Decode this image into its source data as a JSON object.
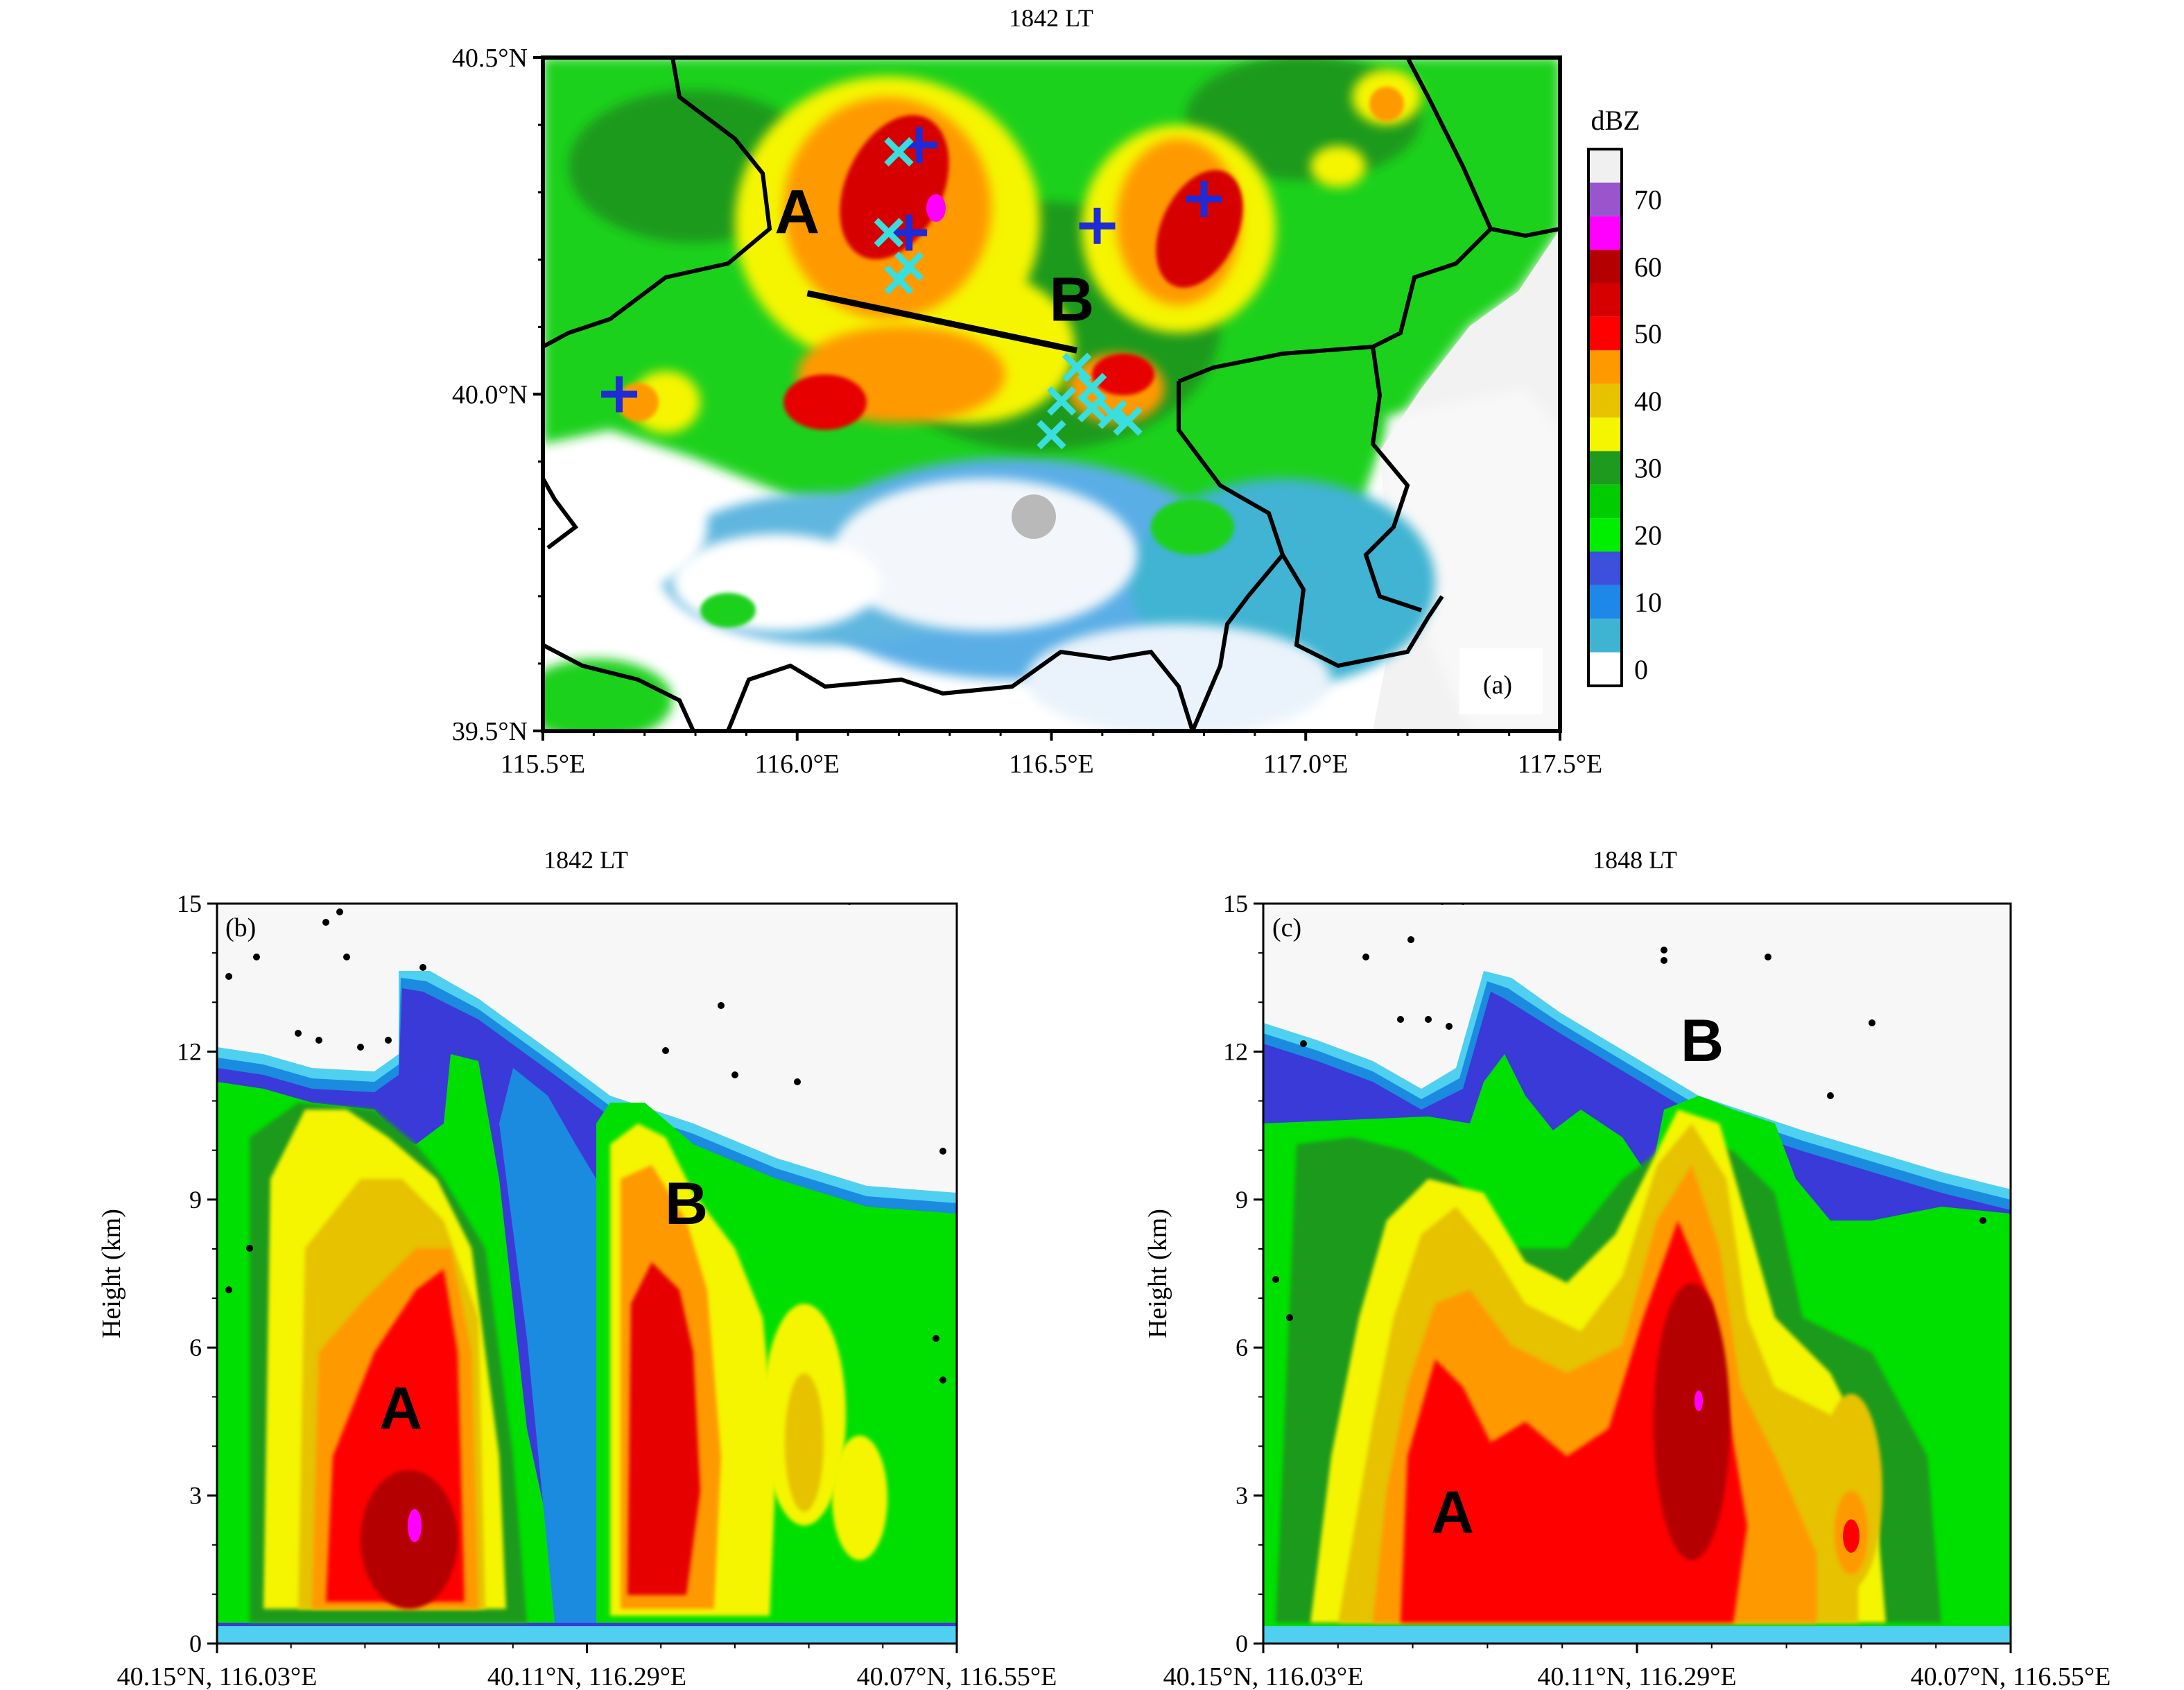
{
  "chart_data": [
    {
      "panel": "(a)",
      "type": "heatmap",
      "title": "1842 LT",
      "xlabel": "",
      "ylabel": "",
      "xlim": [
        115.5,
        117.5
      ],
      "ylim": [
        39.5,
        40.5
      ],
      "x_ticks": [
        {
          "value": 115.5,
          "label": "115.5°E"
        },
        {
          "value": 116.0,
          "label": "116.0°E"
        },
        {
          "value": 116.5,
          "label": "116.5°E"
        },
        {
          "value": 117.0,
          "label": "117.0°E"
        },
        {
          "value": 117.5,
          "label": "117.5°E"
        }
      ],
      "y_ticks": [
        {
          "value": 40.5,
          "label": "40.5°N"
        },
        {
          "value": 40.0,
          "label": "40.0°N"
        },
        {
          "value": 39.5,
          "label": "39.5°N"
        }
      ],
      "colorbar": {
        "title": "dBZ",
        "ticks": [
          "70",
          "60",
          "50",
          "40",
          "30",
          "20",
          "10",
          "0"
        ],
        "levels": [
          0,
          5,
          10,
          15,
          20,
          25,
          30,
          35,
          40,
          45,
          50,
          55,
          60,
          65,
          70,
          75
        ],
        "colors": [
          "#ffffff",
          "#3fb4d2",
          "#1e88e8",
          "#3c50dc",
          "#00ee00",
          "#00cc00",
          "#1e9a1e",
          "#f5f500",
          "#e6c200",
          "#ff9900",
          "#ff0000",
          "#d70000",
          "#b40000",
          "#ff00ff",
          "#9955cc",
          "#f0f0f0"
        ]
      },
      "storm_labels": [
        {
          "text": "A",
          "lon": 116.0,
          "lat": 40.27
        },
        {
          "text": "B",
          "lon": 116.54,
          "lat": 40.14
        }
      ],
      "cross_section_line": {
        "start": [
          116.02,
          40.15
        ],
        "end": [
          116.55,
          40.065
        ]
      },
      "radar_site": {
        "lon": 116.47,
        "lat": 39.81
      },
      "markers_plus": [
        [
          115.65,
          40.0
        ],
        [
          116.24,
          40.37
        ],
        [
          116.22,
          40.24
        ],
        [
          116.59,
          40.25
        ],
        [
          116.8,
          40.29
        ]
      ],
      "markers_x": [
        [
          116.2,
          40.36
        ],
        [
          116.18,
          40.24
        ],
        [
          116.22,
          40.19
        ],
        [
          116.2,
          40.17
        ],
        [
          116.55,
          40.04
        ],
        [
          116.52,
          39.99
        ],
        [
          116.58,
          39.98
        ],
        [
          116.62,
          39.97
        ],
        [
          116.65,
          39.96
        ],
        [
          116.5,
          39.94
        ],
        [
          116.58,
          40.01
        ]
      ],
      "colors": {
        "plus": "#1f2bd6",
        "x": "#39dede",
        "flash": "#000000",
        "border": "#000000"
      },
      "panel_label": "(a)"
    },
    {
      "panel": "(b)",
      "type": "heatmap",
      "title": "1842 LT",
      "xlabel": "",
      "ylabel": "Height (km)",
      "ylim": [
        0,
        15
      ],
      "y_ticks": [
        "0",
        "3",
        "6",
        "9",
        "12",
        "15"
      ],
      "x_ticks": [
        "40.15°N, 116.03°E",
        "40.11°N, 116.29°E",
        "40.07°N, 116.55°E"
      ],
      "storm_labels": [
        "A",
        "B"
      ],
      "max_reflectivity_dbz": 65,
      "echo_top_km": {
        "A": 10.5,
        "B": 10.0
      },
      "panel_label": "(b)"
    },
    {
      "panel": "(c)",
      "type": "heatmap",
      "title": "1848 LT",
      "xlabel": "",
      "ylabel": "Height (km)",
      "ylim": [
        0,
        15
      ],
      "y_ticks": [
        "0",
        "3",
        "6",
        "9",
        "12",
        "15"
      ],
      "x_ticks": [
        "40.15°N, 116.03°E",
        "40.11°N, 116.29°E",
        "40.07°N, 116.55°E"
      ],
      "storm_labels": [
        "A",
        "B"
      ],
      "max_reflectivity_dbz": 65,
      "echo_top_km": {
        "A": 9.5,
        "B": 10.5
      },
      "panel_label": "(c)"
    }
  ]
}
